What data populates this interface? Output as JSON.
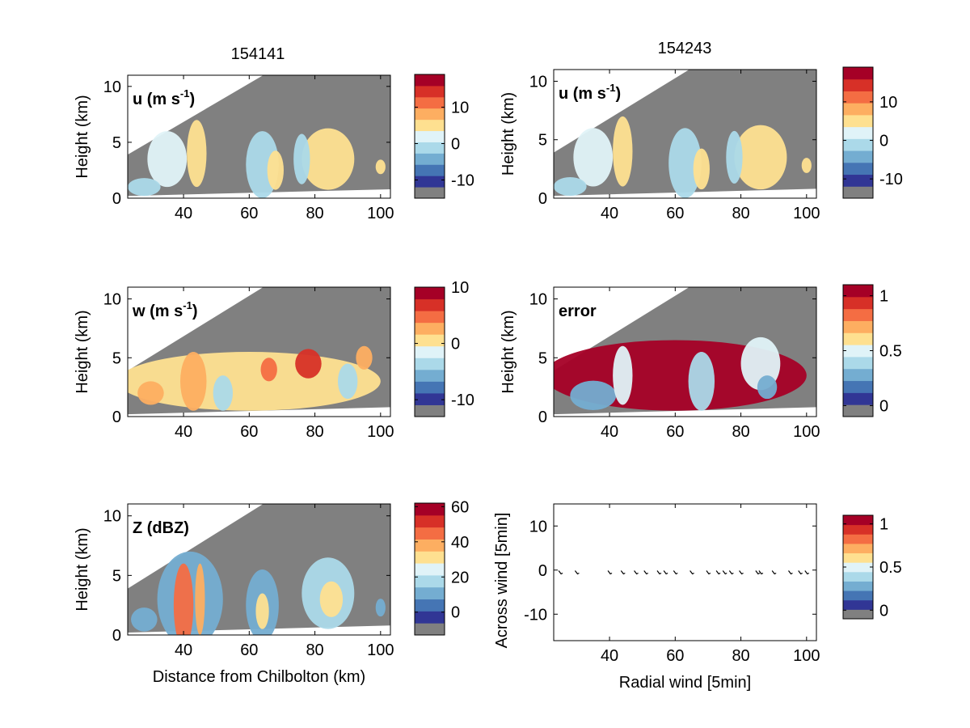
{
  "figure": {
    "titles": {
      "left": "154141",
      "right": "154243"
    },
    "ylabel_height": "Height (km)",
    "xlabel_distance": "Distance from Chilbolton (km)"
  },
  "chart_data": [
    {
      "type": "heatmap",
      "id": "u-left",
      "label": "u (m s",
      "label_sup": "-1",
      "label_suffix": ")",
      "x_ticks": [
        "40",
        "60",
        "80",
        "100"
      ],
      "y_ticks": [
        "0",
        "5",
        "10"
      ],
      "xlim": [
        23,
        103
      ],
      "ylim": [
        0,
        11
      ],
      "colorbar": {
        "range": [
          -15,
          19
        ],
        "ticks": [
          10,
          0,
          -10
        ],
        "tick_labels": [
          "10",
          "0",
          "-10"
        ]
      },
      "echoes": [
        {
          "x": 35,
          "y": 3.5,
          "w": 12,
          "h": 5,
          "v": 3
        },
        {
          "x": 44,
          "y": 4,
          "w": 6,
          "h": 6,
          "v": 6
        },
        {
          "x": 28,
          "y": 1,
          "w": 10,
          "h": 1.6,
          "v": -2
        },
        {
          "x": 64,
          "y": 3,
          "w": 10,
          "h": 6,
          "v": 0
        },
        {
          "x": 68,
          "y": 2.5,
          "w": 5,
          "h": 3.5,
          "v": 4
        },
        {
          "x": 84,
          "y": 3.5,
          "w": 16,
          "h": 5.5,
          "v": 5
        },
        {
          "x": 76,
          "y": 3.5,
          "w": 5,
          "h": 4.5,
          "v": -1
        },
        {
          "x": 100,
          "y": 2.8,
          "w": 3,
          "h": 1.3,
          "v": 4
        }
      ]
    },
    {
      "type": "heatmap",
      "id": "u-right",
      "label": "u (m s",
      "label_sup": "-1",
      "label_suffix": ")",
      "x_ticks": [
        "40",
        "60",
        "80",
        "100"
      ],
      "y_ticks": [
        "0",
        "5",
        "10"
      ],
      "xlim": [
        23,
        103
      ],
      "ylim": [
        0,
        11
      ],
      "colorbar": {
        "range": [
          -15,
          19
        ],
        "ticks": [
          10,
          0,
          -10
        ],
        "tick_labels": [
          "10",
          "0",
          "-10"
        ]
      },
      "echoes": [
        {
          "x": 35,
          "y": 3.5,
          "w": 12,
          "h": 5,
          "v": 3
        },
        {
          "x": 44,
          "y": 4,
          "w": 6,
          "h": 6,
          "v": 6
        },
        {
          "x": 28,
          "y": 1,
          "w": 10,
          "h": 1.6,
          "v": -2
        },
        {
          "x": 63,
          "y": 3,
          "w": 10,
          "h": 6,
          "v": 0
        },
        {
          "x": 68,
          "y": 2.5,
          "w": 5,
          "h": 3.5,
          "v": 4
        },
        {
          "x": 86,
          "y": 3.5,
          "w": 16,
          "h": 5.5,
          "v": 5
        },
        {
          "x": 78,
          "y": 3.5,
          "w": 5,
          "h": 4.5,
          "v": -1
        },
        {
          "x": 100,
          "y": 2.8,
          "w": 3,
          "h": 1.3,
          "v": 4
        }
      ]
    },
    {
      "type": "heatmap",
      "id": "w-left",
      "label": "w (m s",
      "label_sup": "-1",
      "label_suffix": ")",
      "x_ticks": [
        "40",
        "60",
        "80",
        "100"
      ],
      "y_ticks": [
        "0",
        "5",
        "10"
      ],
      "xlim": [
        23,
        103
      ],
      "ylim": [
        0,
        11
      ],
      "colorbar": {
        "range": [
          -13,
          10
        ],
        "ticks": [
          10,
          0,
          -10
        ],
        "tick_labels": [
          "10",
          "0",
          "-10"
        ]
      },
      "echoes": [
        {
          "x": 60,
          "y": 3,
          "w": 80,
          "h": 5,
          "v": 0
        },
        {
          "x": 43,
          "y": 3,
          "w": 8,
          "h": 5,
          "v": 3
        },
        {
          "x": 52,
          "y": 2,
          "w": 6,
          "h": 3,
          "v": -4
        },
        {
          "x": 66,
          "y": 4,
          "w": 5,
          "h": 2,
          "v": 6
        },
        {
          "x": 78,
          "y": 4.5,
          "w": 8,
          "h": 2.5,
          "v": 7
        },
        {
          "x": 90,
          "y": 3,
          "w": 6,
          "h": 3,
          "v": -3
        },
        {
          "x": 30,
          "y": 2,
          "w": 8,
          "h": 2,
          "v": 4
        },
        {
          "x": 95,
          "y": 5,
          "w": 5,
          "h": 2,
          "v": 3
        }
      ]
    },
    {
      "type": "heatmap",
      "id": "error-right",
      "label": "error",
      "label_sup": "",
      "label_suffix": "",
      "x_ticks": [
        "40",
        "60",
        "80",
        "100"
      ],
      "y_ticks": [
        "0",
        "5",
        "10"
      ],
      "xlim": [
        23,
        103
      ],
      "ylim": [
        0,
        11
      ],
      "colorbar": {
        "range": [
          -0.1,
          1.1
        ],
        "ticks": [
          1,
          0.5,
          0
        ],
        "tick_labels": [
          "1",
          "0.5",
          "0"
        ]
      },
      "echoes": [
        {
          "x": 60,
          "y": 3.5,
          "w": 80,
          "h": 6,
          "v": 1.05
        },
        {
          "x": 35,
          "y": 1.8,
          "w": 14,
          "h": 2.5,
          "v": 0.2
        },
        {
          "x": 44,
          "y": 3.5,
          "w": 6,
          "h": 5,
          "v": 0.45
        },
        {
          "x": 68,
          "y": 3,
          "w": 8,
          "h": 5,
          "v": 0.4
        },
        {
          "x": 86,
          "y": 4.5,
          "w": 12,
          "h": 4.5,
          "v": 0.5
        },
        {
          "x": 88,
          "y": 2.5,
          "w": 6,
          "h": 2,
          "v": 0.25
        }
      ]
    },
    {
      "type": "heatmap",
      "id": "z-left",
      "label": "Z (dBZ)",
      "label_sup": "",
      "label_suffix": "",
      "x_ticks": [
        "40",
        "60",
        "80",
        "100"
      ],
      "y_ticks": [
        "0",
        "5",
        "10"
      ],
      "xlim": [
        23,
        103
      ],
      "ylim": [
        0,
        11
      ],
      "xlabel": "Distance from Chilbolton (km)",
      "colorbar": {
        "range": [
          -13,
          62
        ],
        "ticks": [
          60,
          40,
          20,
          0
        ],
        "tick_labels": [
          "60",
          "40",
          "20",
          "0"
        ]
      },
      "echoes": [
        {
          "x": 42,
          "y": 3,
          "w": 20,
          "h": 8,
          "v": 10
        },
        {
          "x": 40,
          "y": 2.5,
          "w": 6,
          "h": 7,
          "v": 46
        },
        {
          "x": 45,
          "y": 3,
          "w": 3,
          "h": 6,
          "v": 40
        },
        {
          "x": 64,
          "y": 2.5,
          "w": 10,
          "h": 6,
          "v": 12
        },
        {
          "x": 64,
          "y": 2,
          "w": 4,
          "h": 3,
          "v": 32
        },
        {
          "x": 84,
          "y": 3.5,
          "w": 16,
          "h": 6,
          "v": 14
        },
        {
          "x": 85,
          "y": 3,
          "w": 7,
          "h": 3,
          "v": 30
        },
        {
          "x": 100,
          "y": 2.3,
          "w": 3,
          "h": 1.5,
          "v": 12
        },
        {
          "x": 28,
          "y": 1.3,
          "w": 8,
          "h": 2,
          "v": 8
        }
      ]
    },
    {
      "type": "scatter",
      "id": "wind-right",
      "xlabel": "Radial wind [5min]",
      "ylabel": "Across wind [5min]",
      "x_ticks": [
        "40",
        "60",
        "80",
        "100"
      ],
      "y_ticks": [
        "10",
        "0",
        "-10"
      ],
      "xlim": [
        23,
        103
      ],
      "ylim": [
        -16,
        15
      ],
      "x": [
        25,
        30,
        40,
        44,
        48,
        51,
        55,
        57,
        60,
        65,
        70,
        73,
        75,
        77,
        80,
        85,
        86,
        90,
        95,
        98,
        100
      ],
      "y": [
        -0.5,
        -0.5,
        -0.5,
        -0.5,
        -0.5,
        -0.5,
        -0.5,
        -0.5,
        -0.5,
        -0.5,
        -0.5,
        -0.5,
        -0.5,
        -0.5,
        -0.5,
        -0.5,
        -0.5,
        -0.5,
        -0.5,
        -0.5,
        -0.5
      ],
      "colorbar": {
        "range": [
          -0.1,
          1.1
        ],
        "ticks": [
          1,
          0.5,
          0
        ],
        "tick_labels": [
          "1",
          "0.5",
          "0"
        ]
      }
    }
  ],
  "colormap": [
    "#808080",
    "#313695",
    "#4575b4",
    "#74add1",
    "#abd9e9",
    "#e0f3f8",
    "#fee090",
    "#fdae61",
    "#f46d43",
    "#d73027",
    "#a50026"
  ]
}
